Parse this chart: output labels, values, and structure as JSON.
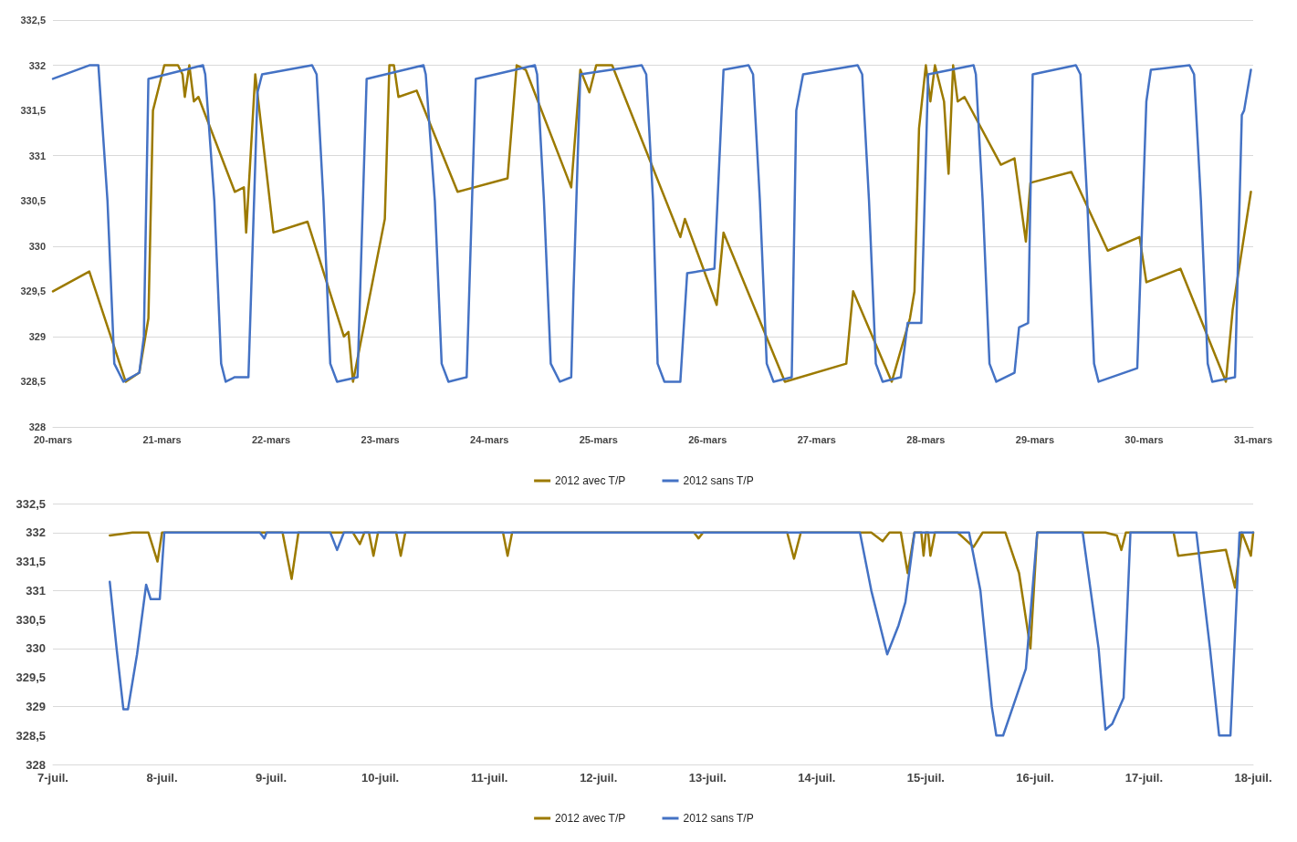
{
  "chart_data": [
    {
      "type": "line",
      "marker": "none",
      "line_style": "solid",
      "grid": "y",
      "legend": "bottom",
      "xlim": [
        "--03-20",
        "--03-31"
      ],
      "xticks": [
        {
          "value": "--03-20",
          "label": "20-mars"
        },
        {
          "value": "--03-21",
          "label": "21-mars"
        },
        {
          "value": "--03-22",
          "label": "22-mars"
        },
        {
          "value": "--03-23",
          "label": "23-mars"
        },
        {
          "value": "--03-24",
          "label": "24-mars"
        },
        {
          "value": "--03-25",
          "label": "25-mars"
        },
        {
          "value": "--03-26",
          "label": "26-mars"
        },
        {
          "value": "--03-27",
          "label": "27-mars"
        },
        {
          "value": "--03-28",
          "label": "28-mars"
        },
        {
          "value": "--03-29",
          "label": "29-mars"
        },
        {
          "value": "--03-30",
          "label": "30-mars"
        },
        {
          "value": "--03-31",
          "label": "31-mars"
        }
      ],
      "ylim": [
        328,
        332.5
      ],
      "yticks": [
        328,
        {
          "value": 328.5,
          "label": "328,5"
        },
        329,
        {
          "value": 329.5,
          "label": "329,5"
        },
        330,
        {
          "value": 330.5,
          "label": "330,5"
        },
        331,
        {
          "value": 331.5,
          "label": "331,5"
        },
        332,
        {
          "value": 332.5,
          "label": "332,5"
        }
      ],
      "series": [
        {
          "name": "2012 avec T/P",
          "color": "#9c7a00",
          "x": [
            "--03-20T00:00",
            "--03-20T08:00",
            "--03-20T16:00",
            "--03-20T19:00",
            "--03-20T21:00",
            "--03-20T22:00",
            "--03-20T23:00",
            "--03-21T00:30",
            "--03-21T03:30",
            "--03-21T04:30",
            "--03-21T05:00",
            "--03-21T06:00",
            "--03-21T07:00",
            "--03-21T08:00",
            "--03-21T16:00",
            "--03-21T18:00",
            "--03-21T18:30",
            "--03-21T20:30",
            "--03-22T00:30",
            "--03-22T08:00",
            "--03-22T16:00",
            "--03-22T17:00",
            "--03-22T18:00",
            "--03-23T01:00",
            "--03-23T02:00",
            "--03-23T03:00",
            "--03-23T04:00",
            "--03-23T08:00",
            "--03-23T17:00",
            "--03-24T04:00",
            "--03-24T06:00",
            "--03-24T08:00",
            "--03-24T18:00",
            "--03-24T20:00",
            "--03-24T22:00",
            "--03-24T23:30",
            "--03-25T03:00",
            "--03-25T18:00",
            "--03-25T19:00",
            "--03-26T02:00",
            "--03-26T03:30",
            "--03-26T17:00",
            "--03-27T06:30",
            "--03-27T08:00",
            "--03-27T16:30",
            "--03-27T20:30",
            "--03-27T21:30",
            "--03-27T22:30",
            "--03-28T00:00",
            "--03-28T01:00",
            "--03-28T02:00",
            "--03-28T04:00",
            "--03-28T05:00",
            "--03-28T06:00",
            "--03-28T07:00",
            "--03-28T08:30",
            "--03-28T16:30",
            "--03-28T19:30",
            "--03-28T22:00",
            "--03-28T23:00",
            "--03-29T08:00",
            "--03-29T16:00",
            "--03-29T23:00",
            "--03-30T00:30",
            "--03-30T08:00",
            "--03-30T16:00",
            "--03-30T18:00",
            "--03-30T19:30",
            "--03-30T23:30"
          ],
          "values": [
            329.5,
            329.72,
            328.5,
            328.6,
            329.2,
            331.5,
            331.7,
            332,
            332,
            331.9,
            331.65,
            332,
            331.6,
            331.65,
            330.6,
            330.65,
            330.15,
            331.9,
            330.15,
            330.27,
            329.0,
            329.05,
            328.5,
            330.3,
            332,
            332,
            331.65,
            331.72,
            330.6,
            330.75,
            332,
            331.95,
            330.65,
            331.95,
            331.7,
            332,
            332,
            330.1,
            330.3,
            329.35,
            330.15,
            328.5,
            328.7,
            329.5,
            328.5,
            329.2,
            329.5,
            331.3,
            332,
            331.6,
            332,
            331.6,
            330.8,
            332,
            331.6,
            331.65,
            330.9,
            330.97,
            330.05,
            330.7,
            330.82,
            329.95,
            330.1,
            329.6,
            329.75,
            328.75,
            328.5,
            329.3,
            330.6
          ]
        },
        {
          "name": "2012 sans T/P",
          "color": "#4472c4",
          "x": [
            "--03-20T00:00",
            "--03-20T08:00",
            "--03-20T10:00",
            "--03-20T12:00",
            "--03-20T13:30",
            "--03-20T15:30",
            "--03-20T19:00",
            "--03-20T20:00",
            "--03-20T21:00",
            "--03-21T09:00",
            "--03-21T09:30",
            "--03-21T11:30",
            "--03-21T13:00",
            "--03-21T14:00",
            "--03-21T16:00",
            "--03-21T19:00",
            "--03-21T21:00",
            "--03-21T22:00",
            "--03-22T09:00",
            "--03-22T10:00",
            "--03-22T11:30",
            "--03-22T13:00",
            "--03-22T14:30",
            "--03-22T19:00",
            "--03-22T21:00",
            "--03-23T09:30",
            "--03-23T10:00",
            "--03-23T12:00",
            "--03-23T13:30",
            "--03-23T15:00",
            "--03-23T19:00",
            "--03-23T21:00",
            "--03-24T10:00",
            "--03-24T10:30",
            "--03-24T12:00",
            "--03-24T13:30",
            "--03-24T15:30",
            "--03-24T18:00",
            "--03-24T18:30",
            "--03-24T20:00",
            "--03-25T09:30",
            "--03-25T10:30",
            "--03-25T12:00",
            "--03-25T13:00",
            "--03-25T14:30",
            "--03-25T18:00",
            "--03-25T19:30",
            "--03-26T01:30",
            "--03-26T03:30",
            "--03-26T09:00",
            "--03-26T10:00",
            "--03-26T11:30",
            "--03-26T13:00",
            "--03-26T14:30",
            "--03-26T18:30",
            "--03-26T19:30",
            "--03-26T21:00",
            "--03-27T09:00",
            "--03-27T10:00",
            "--03-27T11:30",
            "--03-27T13:00",
            "--03-27T14:30",
            "--03-27T18:30",
            "--03-27T20:00",
            "--03-27T23:00",
            "--03-28T00:30",
            "--03-28T10:30",
            "--03-28T11:00",
            "--03-28T12:30",
            "--03-28T14:00",
            "--03-28T15:30",
            "--03-28T19:30",
            "--03-28T20:30",
            "--03-28T22:30",
            "--03-28T23:30",
            "--03-29T09:00",
            "--03-29T10:00",
            "--03-29T11:30",
            "--03-29T13:00",
            "--03-29T14:00",
            "--03-29T22:30",
            "--03-30T00:30",
            "--03-30T01:30",
            "--03-30T10:00",
            "--03-30T11:00",
            "--03-30T12:30",
            "--03-30T14:00",
            "--03-30T15:00",
            "--03-30T20:00",
            "--03-30T21:30",
            "--03-30T22:00",
            "--03-30T23:30"
          ],
          "values": [
            331.85,
            332,
            332,
            330.5,
            328.7,
            328.5,
            328.6,
            329.0,
            331.85,
            332,
            331.9,
            330.5,
            328.7,
            328.5,
            328.55,
            328.55,
            331.7,
            331.9,
            332,
            331.9,
            330.5,
            328.7,
            328.5,
            328.55,
            331.85,
            332,
            331.9,
            330.5,
            328.7,
            328.5,
            328.55,
            331.85,
            332,
            331.9,
            330.5,
            328.7,
            328.5,
            328.55,
            329.5,
            331.9,
            332,
            331.9,
            330.5,
            328.7,
            328.5,
            328.5,
            329.7,
            329.75,
            331.95,
            332,
            331.9,
            330.5,
            328.7,
            328.5,
            328.55,
            331.5,
            331.9,
            332,
            331.9,
            330.5,
            328.7,
            328.5,
            328.55,
            329.15,
            329.15,
            331.9,
            332,
            331.9,
            330.5,
            328.7,
            328.5,
            328.6,
            329.1,
            329.15,
            331.9,
            332,
            331.9,
            330.5,
            328.7,
            328.5,
            328.65,
            331.6,
            331.95,
            332,
            331.9,
            330.5,
            328.7,
            328.5,
            328.55,
            331.45,
            331.5,
            331.95
          ]
        }
      ]
    },
    {
      "type": "line",
      "marker": "none",
      "line_style": "solid",
      "grid": "y",
      "legend": "bottom",
      "xlim": [
        "--07-07",
        "--07-18"
      ],
      "xticks": [
        {
          "value": "--07-07",
          "label": "7-juil."
        },
        {
          "value": "--07-08",
          "label": "8-juil."
        },
        {
          "value": "--07-09",
          "label": "9-juil."
        },
        {
          "value": "--07-10",
          "label": "10-juil."
        },
        {
          "value": "--07-11",
          "label": "11-juil."
        },
        {
          "value": "--07-12",
          "label": "12-juil."
        },
        {
          "value": "--07-13",
          "label": "13-juil."
        },
        {
          "value": "--07-14",
          "label": "14-juil."
        },
        {
          "value": "--07-15",
          "label": "15-juil."
        },
        {
          "value": "--07-16",
          "label": "16-juil."
        },
        {
          "value": "--07-17",
          "label": "17-juil."
        },
        {
          "value": "--07-18",
          "label": "18-juil."
        }
      ],
      "ylim": [
        328,
        332.5
      ],
      "yticks": [
        328,
        {
          "value": 328.5,
          "label": "328,5"
        },
        329,
        {
          "value": 329.5,
          "label": "329,5"
        },
        330,
        {
          "value": 330.5,
          "label": "330,5"
        },
        331,
        {
          "value": 331.5,
          "label": "331,5"
        },
        332,
        {
          "value": 332.5,
          "label": "332,5"
        }
      ],
      "series": [
        {
          "name": "2012 avec T/P",
          "color": "#9c7a00",
          "x": [
            "--07-07T12:30",
            "--07-07T17:30",
            "--07-07T21:00",
            "--07-07T23:00",
            "--07-08T00:00",
            "--07-09T02:30",
            "--07-09T04:30",
            "--07-09T06:00",
            "--07-09T18:00",
            "--07-09T19:30",
            "--07-09T20:30",
            "--07-09T21:30",
            "--07-09T22:30",
            "--07-09T23:30",
            "--07-10T03:30",
            "--07-10T04:30",
            "--07-10T05:30",
            "--07-11T03:00",
            "--07-11T04:00",
            "--07-11T05:00",
            "--07-12T21:00",
            "--07-12T22:00",
            "--07-12T23:00",
            "--07-13T17:30",
            "--07-13T19:00",
            "--07-13T20:30",
            "--07-14T12:00",
            "--07-14T14:30",
            "--07-14T16:00",
            "--07-14T18:30",
            "--07-14T20:00",
            "--07-14T21:30",
            "--07-14T23:00",
            "--07-14T23:30",
            "--07-15T00:00",
            "--07-15T00:30",
            "--07-15T01:00",
            "--07-15T02:00",
            "--07-15T07:00",
            "--07-15T10:30",
            "--07-15T12:30",
            "--07-15T16:30",
            "--07-15T17:30",
            "--07-15T20:30",
            "--07-15T23:00",
            "--07-16T00:30",
            "--07-16T15:30",
            "--07-16T18:00",
            "--07-16T19:00",
            "--07-16T20:00",
            "--07-17T06:30",
            "--07-17T07:30",
            "--07-17T18:00",
            "--07-17T20:00",
            "--07-17T21:30",
            "--07-17T23:30",
            "--07-18T00:00"
          ],
          "values": [
            331.95,
            332,
            332,
            331.5,
            332,
            332,
            331.2,
            332,
            332,
            331.8,
            332,
            332,
            331.6,
            332,
            332,
            331.6,
            332,
            332,
            331.6,
            332,
            332,
            331.9,
            332,
            332,
            331.55,
            332,
            332,
            331.85,
            332,
            332,
            331.3,
            332,
            332,
            331.6,
            332,
            332,
            331.6,
            332,
            332,
            331.75,
            332,
            332,
            332,
            331.3,
            330.0,
            332,
            332,
            331.95,
            331.7,
            332,
            332,
            331.6,
            331.7,
            331.05,
            332,
            331.6,
            332
          ]
        },
        {
          "name": "2012 sans T/P",
          "color": "#4472c4",
          "x": [
            "--07-07T12:30",
            "--07-07T14:00",
            "--07-07T15:30",
            "--07-07T16:30",
            "--07-07T18:30",
            "--07-07T20:30",
            "--07-07T21:30",
            "--07-07T23:30",
            "--07-08T00:30",
            "--07-08T21:30",
            "--07-08T22:30",
            "--07-08T23:00",
            "--07-09T13:00",
            "--07-09T14:30",
            "--07-09T16:00",
            "--07-14T09:30",
            "--07-14T12:00",
            "--07-14T15:30",
            "--07-14T18:00",
            "--07-14T19:30",
            "--07-14T21:30",
            "--07-15T09:30",
            "--07-15T12:00",
            "--07-15T14:30",
            "--07-15T15:30",
            "--07-15T17:00",
            "--07-15T22:00",
            "--07-16T00:30",
            "--07-16T10:30",
            "--07-16T14:00",
            "--07-16T15:30",
            "--07-16T17:00",
            "--07-16T19:30",
            "--07-16T21:00",
            "--07-17T11:30",
            "--07-17T14:30",
            "--07-17T16:30",
            "--07-17T19:00",
            "--07-17T21:00",
            "--07-18T00:00"
          ],
          "values": [
            331.15,
            330,
            328.95,
            328.95,
            329.9,
            331.1,
            330.85,
            330.85,
            332,
            332,
            331.9,
            332,
            332,
            331.7,
            332,
            332,
            331.0,
            329.9,
            330.4,
            330.8,
            332,
            332,
            331,
            329,
            328.5,
            328.5,
            329.65,
            332,
            332,
            330,
            328.6,
            328.7,
            329.15,
            332,
            332,
            330,
            328.5,
            328.5,
            332,
            332
          ]
        }
      ]
    }
  ]
}
